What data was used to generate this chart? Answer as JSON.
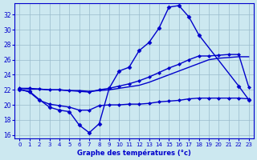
{
  "title": "Graphe des températures (°c)",
  "background_color": "#cce8f0",
  "line_color": "#0000cc",
  "grid_color": "#99bbcc",
  "x_ticks": [
    0,
    1,
    2,
    3,
    4,
    5,
    6,
    7,
    8,
    9,
    10,
    11,
    12,
    13,
    14,
    15,
    16,
    17,
    18,
    19,
    20,
    21,
    22,
    23
  ],
  "y_ticks": [
    16,
    18,
    20,
    22,
    24,
    26,
    28,
    30,
    32
  ],
  "ylim": [
    15.5,
    33.5
  ],
  "xlim": [
    -0.5,
    23.5
  ],
  "series": [
    {
      "x": [
        0,
        1,
        2,
        3,
        4,
        5,
        6,
        7,
        8,
        9,
        10,
        11,
        12,
        13,
        14,
        15,
        16,
        17,
        18,
        22,
        23
      ],
      "y": [
        22.0,
        21.8,
        20.7,
        19.7,
        19.3,
        19.1,
        17.3,
        16.3,
        17.5,
        22.2,
        24.5,
        25.0,
        27.2,
        28.3,
        30.2,
        33.0,
        33.2,
        31.7,
        29.3,
        22.5,
        20.7
      ],
      "marker": "D",
      "markersize": 2.5,
      "linewidth": 1.0,
      "linestyle": "-"
    },
    {
      "x": [
        0,
        1,
        2,
        3,
        4,
        5,
        6,
        7,
        8,
        9,
        10,
        11,
        12,
        13,
        14,
        15,
        16,
        17,
        18,
        19,
        20,
        21,
        22,
        23
      ],
      "y": [
        22.1,
        21.7,
        20.6,
        20.1,
        19.9,
        19.7,
        19.3,
        19.3,
        19.9,
        20.0,
        20.0,
        20.1,
        20.1,
        20.2,
        20.4,
        20.5,
        20.6,
        20.8,
        20.9,
        20.9,
        20.9,
        20.9,
        20.9,
        20.8
      ],
      "marker": "D",
      "markersize": 2.0,
      "linewidth": 1.0,
      "linestyle": "-"
    },
    {
      "x": [
        0,
        1,
        2,
        3,
        4,
        5,
        6,
        7,
        8,
        9,
        10,
        11,
        12,
        13,
        14,
        15,
        16,
        17,
        18,
        19,
        20,
        21,
        22,
        23
      ],
      "y": [
        22.2,
        22.2,
        22.1,
        22.0,
        22.0,
        21.9,
        21.8,
        21.7,
        22.0,
        22.2,
        22.5,
        22.8,
        23.2,
        23.7,
        24.3,
        24.9,
        25.4,
        26.0,
        26.5,
        26.5,
        26.6,
        26.7,
        26.7,
        22.4
      ],
      "marker": "D",
      "markersize": 2.0,
      "linewidth": 1.0,
      "linestyle": "-"
    },
    {
      "x": [
        0,
        1,
        2,
        3,
        4,
        5,
        6,
        7,
        8,
        9,
        10,
        11,
        12,
        13,
        14,
        15,
        16,
        17,
        18,
        19,
        20,
        21,
        22,
        23
      ],
      "y": [
        22.2,
        22.1,
        22.1,
        22.0,
        22.0,
        21.9,
        21.9,
        21.8,
        21.9,
        22.0,
        22.2,
        22.4,
        22.6,
        23.0,
        23.5,
        24.0,
        24.5,
        25.0,
        25.5,
        26.0,
        26.2,
        26.3,
        26.4,
        26.4
      ],
      "marker": null,
      "markersize": 0,
      "linewidth": 1.0,
      "linestyle": "-"
    }
  ]
}
